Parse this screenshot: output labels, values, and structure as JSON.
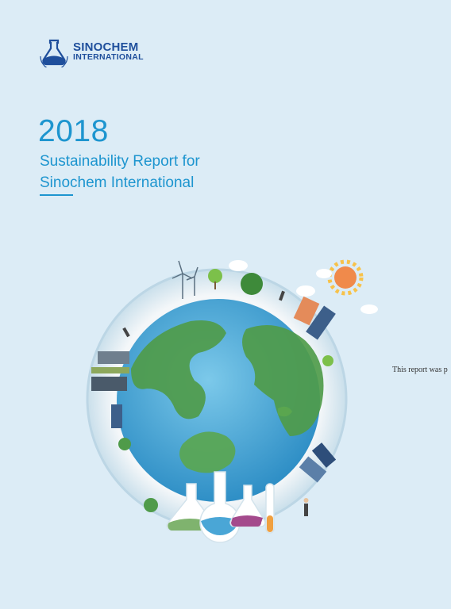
{
  "brand": {
    "name_line1": "SINOCHEM",
    "name_line2": "INTERNATIONAL",
    "logo_ring_text": "SINOCHEM"
  },
  "cover": {
    "year": "2018",
    "title_line1": "Sustainability Report for",
    "title_line2": "Sinochem International"
  },
  "side_note": "This report was p",
  "colors": {
    "background": "#dcecf6",
    "accent": "#1d95cf",
    "brand_blue": "#1f4f9c",
    "ocean": "#4aa6d6",
    "land": "#4f9b4a",
    "sun": "#f08a4b"
  }
}
